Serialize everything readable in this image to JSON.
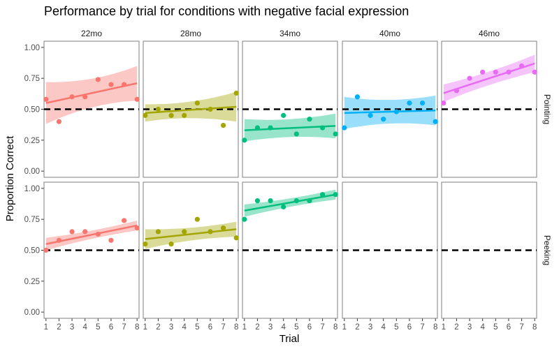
{
  "chart_data": {
    "type": "scatter",
    "title": "Performance by trial for conditions with negative facial expression",
    "xlabel": "Trial",
    "ylabel": "Proportion Correct",
    "xlim": [
      0.85,
      8.15
    ],
    "ylim": [
      -0.05,
      1.05
    ],
    "x_ticks": [
      "1",
      "2",
      "3",
      "4",
      "5",
      "6",
      "7",
      "8"
    ],
    "y_ticks": [
      "0.00",
      "0.25",
      "0.50",
      "0.75",
      "1.00"
    ],
    "reference_line": 0.5,
    "grid": false,
    "columns": [
      "22mo",
      "28mo",
      "34mo",
      "40mo",
      "46mo"
    ],
    "rows": [
      "Pointing",
      "Peeking"
    ],
    "colors": {
      "22mo": "#F8766D",
      "28mo": "#A3A500",
      "34mo": "#00BF7D",
      "40mo": "#00B0F6",
      "46mo": "#E76BF3"
    },
    "panels": [
      {
        "row": "Pointing",
        "col": "22mo",
        "x": [
          1,
          2,
          3,
          4,
          5,
          6,
          7,
          8
        ],
        "y": [
          0.58,
          0.4,
          0.6,
          0.6,
          0.74,
          0.7,
          0.7,
          0.58
        ],
        "fit": [
          0.55,
          0.71
        ],
        "band": [
          0.17,
          0.14
        ]
      },
      {
        "row": "Pointing",
        "col": "28mo",
        "x": [
          1,
          2,
          3,
          4,
          5,
          6,
          7,
          8
        ],
        "y": [
          0.45,
          0.5,
          0.45,
          0.45,
          0.55,
          0.5,
          0.37,
          0.63
        ],
        "fit": [
          0.47,
          0.52
        ],
        "band": [
          0.07,
          0.12
        ]
      },
      {
        "row": "Pointing",
        "col": "34mo",
        "x": [
          1,
          2,
          3,
          4,
          5,
          6,
          7,
          8
        ],
        "y": [
          0.25,
          0.35,
          0.35,
          0.45,
          0.3,
          0.42,
          0.35,
          0.3
        ],
        "fit": [
          0.33,
          0.365
        ],
        "band": [
          0.09,
          0.1
        ]
      },
      {
        "row": "Pointing",
        "col": "40mo",
        "x": [
          1,
          2,
          3,
          4,
          5,
          6,
          7,
          8
        ],
        "y": [
          0.35,
          0.6,
          0.45,
          0.42,
          0.48,
          0.55,
          0.55,
          0.4
        ],
        "fit": [
          0.47,
          0.49
        ],
        "band": [
          0.13,
          0.12
        ]
      },
      {
        "row": "Pointing",
        "col": "46mo",
        "x": [
          1,
          2,
          3,
          4,
          5,
          6,
          7,
          8
        ],
        "y": [
          0.55,
          0.65,
          0.75,
          0.8,
          0.8,
          0.8,
          0.85,
          0.8
        ],
        "fit": [
          0.63,
          0.87
        ],
        "band": [
          0.07,
          0.07
        ]
      },
      {
        "row": "Peeking",
        "col": "22mo",
        "x": [
          1,
          2,
          3,
          4,
          5,
          6,
          7,
          8
        ],
        "y": [
          0.5,
          0.58,
          0.65,
          0.65,
          0.63,
          0.58,
          0.74,
          0.68
        ],
        "fit": [
          0.55,
          0.7
        ],
        "band": [
          0.05,
          0.04
        ]
      },
      {
        "row": "Peeking",
        "col": "28mo",
        "x": [
          1,
          2,
          3,
          4,
          5,
          6,
          7,
          8
        ],
        "y": [
          0.55,
          0.65,
          0.55,
          0.65,
          0.75,
          0.65,
          0.68,
          0.6
        ],
        "fit": [
          0.59,
          0.67
        ],
        "band": [
          0.08,
          0.06
        ]
      },
      {
        "row": "Peeking",
        "col": "34mo",
        "x": [
          1,
          2,
          3,
          4,
          5,
          6,
          7,
          8
        ],
        "y": [
          0.75,
          0.9,
          0.9,
          0.85,
          0.9,
          0.9,
          0.95,
          0.95
        ],
        "fit": [
          0.82,
          0.95
        ],
        "band": [
          0.05,
          0.04
        ]
      },
      {
        "row": "Peeking",
        "col": "40mo",
        "x": [],
        "y": [],
        "fit": null,
        "band": null
      },
      {
        "row": "Peeking",
        "col": "46mo",
        "x": [],
        "y": [],
        "fit": null,
        "band": null
      }
    ]
  }
}
